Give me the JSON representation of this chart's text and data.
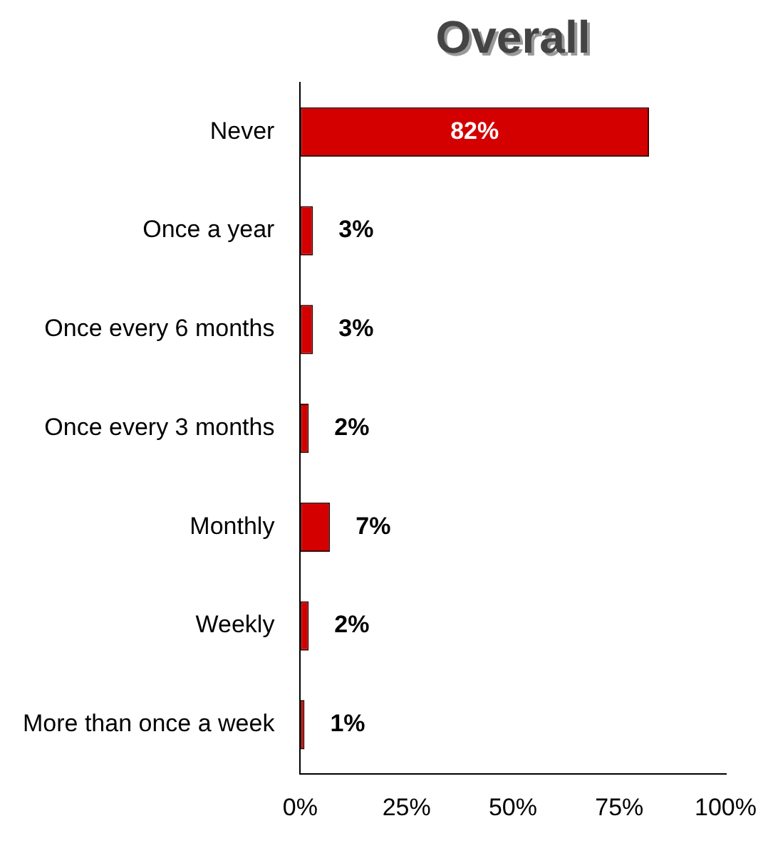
{
  "chart_data": {
    "type": "bar",
    "orientation": "horizontal",
    "title": "Overall",
    "categories": [
      "Never",
      "Once a year",
      "Once every 6 months",
      "Once every 3 months",
      "Monthly",
      "Weekly",
      "More than once a week"
    ],
    "values": [
      82,
      3,
      3,
      2,
      7,
      2,
      1
    ],
    "value_labels": [
      "82%",
      "3%",
      "3%",
      "2%",
      "7%",
      "2%",
      "1%"
    ],
    "color": "#d40000",
    "xlim": [
      0,
      100
    ],
    "xticks": [
      {
        "value": 0,
        "label": "0%"
      },
      {
        "value": 25,
        "label": "25%"
      },
      {
        "value": 50,
        "label": "50%"
      },
      {
        "value": 75,
        "label": "75%"
      },
      {
        "value": 100,
        "label": "100%"
      }
    ],
    "grid": false,
    "legend": false
  }
}
